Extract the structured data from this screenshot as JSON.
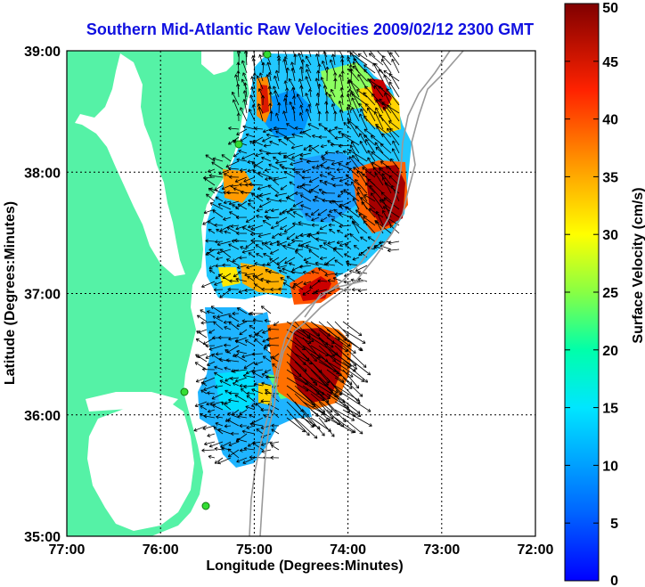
{
  "title": "Southern Mid-Atlantic Raw Velocities 2009/02/12 2300 GMT",
  "axes": {
    "xlabel": "Longitude (Degrees:Minutes)",
    "ylabel": "Latitude (Degrees:Minutes)",
    "x_ticks": [
      "77:00",
      "76:00",
      "75:00",
      "74:00",
      "73:00",
      "72:00"
    ],
    "y_ticks": [
      "39:00",
      "38:00",
      "37:00",
      "36:00",
      "35:00"
    ],
    "x_range": [
      -77,
      -72
    ],
    "y_range": [
      35,
      39
    ],
    "grid": true
  },
  "colorbar": {
    "label": "Surface Velocity (cm/s)",
    "ticks": [
      "0",
      "5",
      "10",
      "15",
      "20",
      "25",
      "30",
      "35",
      "40",
      "45",
      "50"
    ],
    "range": [
      0,
      50
    ],
    "colormap": "jet"
  },
  "colors": {
    "land": "#55f2a6",
    "water": "#ffffff",
    "title": "#1010e0",
    "vector": "#000000",
    "bathymetry": "#999999",
    "station": "#33dd33"
  }
}
